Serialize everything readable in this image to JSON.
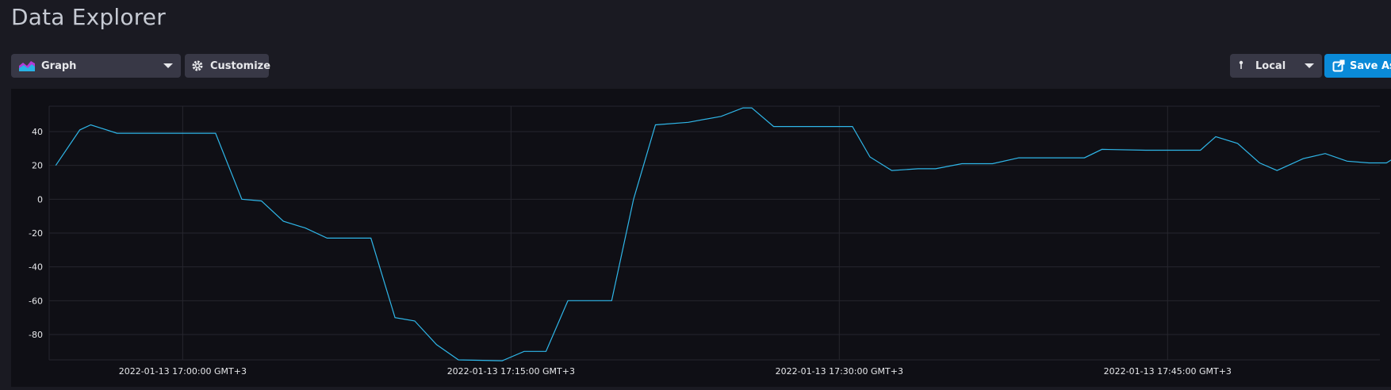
{
  "header": {
    "title": "Data Explorer"
  },
  "toolbar": {
    "view_type": "Graph",
    "customize_label": "Customize",
    "timezone": "Local",
    "save_as_label": "Save As",
    "icons": {
      "graph": "graph-type-icon",
      "customize": "gear-icon",
      "timezone": "pin-icon",
      "save_as": "export-icon",
      "caret": "chevron-down-icon"
    }
  },
  "colors": {
    "line": "#2fb6e8",
    "save_button": "#0a8ad8",
    "background": "#1a1a22",
    "panel": "#0f0f15",
    "grid": "#26262e"
  },
  "chart_data": {
    "type": "line",
    "title": "",
    "xlabel": "",
    "ylabel": "",
    "grid": true,
    "ylim": [
      -95,
      55
    ],
    "y_ticks": [
      40,
      20,
      0,
      -20,
      -40,
      -60,
      -80
    ],
    "x_ticks": [
      {
        "t": 4,
        "label": "2022-01-13 17:00:00 GMT+3"
      },
      {
        "t": 19,
        "label": "2022-01-13 17:15:00 GMT+3"
      },
      {
        "t": 34,
        "label": "2022-01-13 17:30:00 GMT+3"
      },
      {
        "t": 49,
        "label": "2022-01-13 17:45:00 GMT+3"
      }
    ],
    "xlim": [
      -2.1,
      58.7
    ],
    "series": [
      {
        "points": [
          [
            -1.8,
            20
          ],
          [
            -0.7,
            41
          ],
          [
            -0.2,
            44
          ],
          [
            1.0,
            39
          ],
          [
            3.0,
            39
          ],
          [
            5.0,
            39
          ],
          [
            5.5,
            39
          ],
          [
            6.7,
            0
          ],
          [
            7.6,
            -1
          ],
          [
            8.6,
            -13
          ],
          [
            9.6,
            -17
          ],
          [
            10.6,
            -23
          ],
          [
            12.0,
            -23
          ],
          [
            12.6,
            -23
          ],
          [
            13.7,
            -70
          ],
          [
            14.6,
            -72
          ],
          [
            15.6,
            -86
          ],
          [
            16.6,
            -95
          ],
          [
            18.6,
            -95.5
          ],
          [
            19.6,
            -90
          ],
          [
            20.6,
            -90
          ],
          [
            21.6,
            -60
          ],
          [
            23.6,
            -60
          ],
          [
            24.6,
            0
          ],
          [
            25.6,
            44
          ],
          [
            27.1,
            45.5
          ],
          [
            28.6,
            49
          ],
          [
            29.6,
            54
          ],
          [
            30.0,
            54
          ],
          [
            31.0,
            43
          ],
          [
            33.6,
            43
          ],
          [
            34.6,
            43
          ],
          [
            35.4,
            25
          ],
          [
            36.4,
            17
          ],
          [
            37.6,
            18
          ],
          [
            38.4,
            18
          ],
          [
            39.6,
            21
          ],
          [
            41.0,
            21
          ],
          [
            42.2,
            24.5
          ],
          [
            43.6,
            24.5
          ],
          [
            45.2,
            24.5
          ],
          [
            46.0,
            29.5
          ],
          [
            48.0,
            29
          ],
          [
            49.0,
            29
          ],
          [
            50.5,
            29
          ],
          [
            51.2,
            37
          ],
          [
            52.2,
            33
          ],
          [
            53.2,
            21.5
          ],
          [
            54.0,
            17
          ],
          [
            55.2,
            24
          ],
          [
            56.2,
            27
          ],
          [
            57.2,
            22.5
          ],
          [
            58.2,
            21.5
          ],
          [
            59.0,
            21.5
          ],
          [
            60.0,
            29.5
          ]
        ]
      }
    ]
  }
}
